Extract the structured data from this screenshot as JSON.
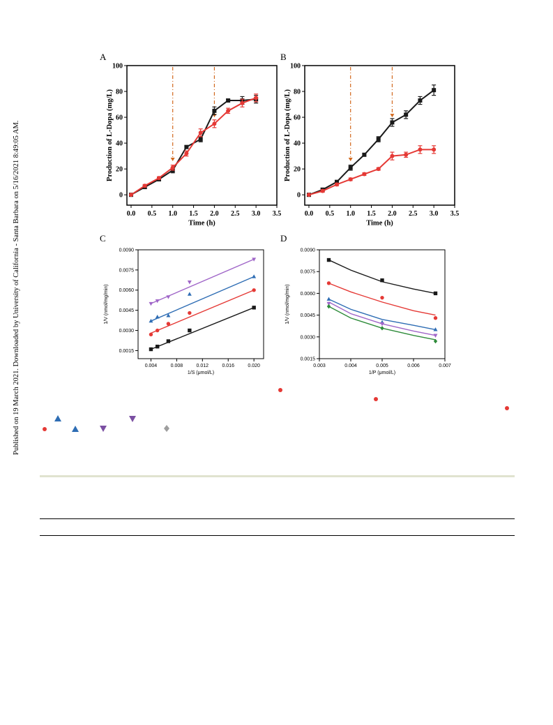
{
  "sidebar_text": "Published on 19 March 2021. Downloaded by University of California - Santa Barbara on 5/16/2021 8:49:05 AM.",
  "colors": {
    "black_series": "#1a1a1a",
    "red_series": "#e53935",
    "blue_series": "#2e6db4",
    "purple_series": "#a066c8",
    "green_series": "#2e8b3a",
    "annotation": "#d2691e"
  },
  "chart_data": [
    {
      "panel": "A",
      "type": "line",
      "xlabel": "Time (h)",
      "ylabel": "Production of L-Dopa (mg/L)",
      "xlim": [
        -0.1,
        3.5
      ],
      "ylim": [
        -8,
        100
      ],
      "xticks": [
        "0.0",
        "0.5",
        "1.0",
        "1.5",
        "2.0",
        "2.5",
        "3.0",
        "3.5"
      ],
      "yticks": [
        "0",
        "20",
        "40",
        "60",
        "80",
        "100"
      ],
      "annotation_lines_x": [
        1.0,
        2.0
      ],
      "series": [
        {
          "color": "black",
          "marker": "square",
          "x": [
            0,
            0.33,
            0.67,
            1.0,
            1.33,
            1.67,
            2.0,
            2.33,
            2.67,
            3.0
          ],
          "y": [
            0,
            6,
            12,
            19,
            37,
            43,
            65,
            73,
            73,
            74
          ],
          "err": [
            0,
            1,
            1,
            2,
            1,
            2,
            3,
            1,
            3,
            3
          ]
        },
        {
          "color": "red",
          "marker": "circle",
          "x": [
            0,
            0.33,
            0.67,
            1.0,
            1.33,
            1.67,
            2.0,
            2.33,
            2.67,
            3.0
          ],
          "y": [
            0,
            7,
            13,
            21,
            32,
            48,
            55,
            65,
            71,
            75
          ],
          "err": [
            0,
            1,
            1,
            2,
            2,
            3,
            3,
            2,
            3,
            3
          ]
        }
      ]
    },
    {
      "panel": "B",
      "type": "line",
      "xlabel": "Time (h)",
      "ylabel": "Production of L-Dopa (mg/L)",
      "xlim": [
        -0.1,
        3.5
      ],
      "ylim": [
        -8,
        100
      ],
      "xticks": [
        "0.0",
        "0.5",
        "1.0",
        "1.5",
        "2.0",
        "2.5",
        "3.0",
        "3.5"
      ],
      "yticks": [
        "0",
        "20",
        "40",
        "60",
        "80",
        "100"
      ],
      "annotation_lines_x": [
        1.0,
        2.0
      ],
      "series": [
        {
          "color": "black",
          "marker": "square",
          "x": [
            0,
            0.33,
            0.67,
            1.0,
            1.33,
            1.67,
            2.0,
            2.33,
            2.67,
            3.0
          ],
          "y": [
            0,
            4,
            10,
            21,
            31,
            43,
            56,
            62,
            73,
            81
          ],
          "err": [
            0,
            1,
            1,
            2,
            1,
            2,
            3,
            3,
            3,
            4
          ]
        },
        {
          "color": "red",
          "marker": "circle",
          "x": [
            0,
            0.33,
            0.67,
            1.0,
            1.33,
            1.67,
            2.0,
            2.33,
            2.67,
            3.0
          ],
          "y": [
            0,
            3,
            8,
            12,
            16,
            20,
            30,
            31,
            35,
            35
          ],
          "err": [
            0,
            1,
            1,
            1,
            1,
            1,
            3,
            2,
            3,
            3
          ]
        }
      ]
    },
    {
      "panel": "C",
      "type": "scatter",
      "xlabel": "1/S (μmol/L)",
      "ylabel": "1/V (nmol/mg/min)",
      "xlim": [
        0.002,
        0.0215
      ],
      "ylim": [
        0.0009,
        0.009
      ],
      "xticks": [
        "0.004",
        "0.008",
        "0.012",
        "0.016",
        "0.020"
      ],
      "yticks": [
        "0.0015",
        "0.0030",
        "0.0045",
        "0.0060",
        "0.0075",
        "0.0090"
      ],
      "series": [
        {
          "color": "black",
          "marker": "square",
          "x": [
            0.004,
            0.005,
            0.0067,
            0.01,
            0.02
          ],
          "y": [
            0.0016,
            0.0018,
            0.0022,
            0.003,
            0.0047
          ],
          "fit": [
            [
              0.004,
              0.0016
            ],
            [
              0.02,
              0.0047
            ]
          ]
        },
        {
          "color": "red",
          "marker": "circle",
          "x": [
            0.004,
            0.005,
            0.0067,
            0.01,
            0.02
          ],
          "y": [
            0.0027,
            0.003,
            0.0035,
            0.0043,
            0.006
          ],
          "fit": [
            [
              0.004,
              0.0028
            ],
            [
              0.02,
              0.006
            ]
          ]
        },
        {
          "color": "blue",
          "marker": "triangle-up",
          "x": [
            0.004,
            0.005,
            0.0067,
            0.01,
            0.02
          ],
          "y": [
            0.0037,
            0.004,
            0.0041,
            0.0057,
            0.007
          ],
          "fit": [
            [
              0.004,
              0.0037
            ],
            [
              0.02,
              0.007
            ]
          ]
        },
        {
          "color": "purple",
          "marker": "triangle-down",
          "x": [
            0.004,
            0.005,
            0.0067,
            0.01,
            0.02
          ],
          "y": [
            0.005,
            0.0052,
            0.0055,
            0.0066,
            0.0083
          ],
          "fit": [
            [
              0.004,
              0.005
            ],
            [
              0.02,
              0.0083
            ]
          ]
        }
      ]
    },
    {
      "panel": "D",
      "type": "scatter",
      "xlabel": "1/P (μmol/L)",
      "ylabel": "1/V (nmol/mg/min)",
      "xlim": [
        0.003,
        0.007
      ],
      "ylim": [
        0.0015,
        0.009
      ],
      "xticks": [
        "0.003",
        "0.004",
        "0.005",
        "0.006",
        "0.007"
      ],
      "yticks": [
        "0.0015",
        "0.0030",
        "0.0045",
        "0.0060",
        "0.0075",
        "0.0090"
      ],
      "series": [
        {
          "color": "black",
          "marker": "square",
          "x": [
            0.0033,
            0.005,
            0.0067
          ],
          "y": [
            0.0083,
            0.0069,
            0.006
          ],
          "fit": [
            [
              0.0033,
              0.0083
            ],
            [
              0.004,
              0.0076
            ],
            [
              0.005,
              0.0068
            ],
            [
              0.006,
              0.0063
            ],
            [
              0.0067,
              0.006
            ]
          ]
        },
        {
          "color": "red",
          "marker": "circle",
          "x": [
            0.0033,
            0.005,
            0.0067
          ],
          "y": [
            0.0067,
            0.0057,
            0.0043
          ],
          "fit": [
            [
              0.0033,
              0.0067
            ],
            [
              0.004,
              0.0061
            ],
            [
              0.005,
              0.0054
            ],
            [
              0.006,
              0.0048
            ],
            [
              0.0067,
              0.0045
            ]
          ]
        },
        {
          "color": "blue",
          "marker": "triangle-up",
          "x": [
            0.0033,
            0.005,
            0.0067
          ],
          "y": [
            0.0056,
            0.004,
            0.0035
          ],
          "fit": [
            [
              0.0033,
              0.0056
            ],
            [
              0.004,
              0.0049
            ],
            [
              0.005,
              0.0042
            ],
            [
              0.006,
              0.0038
            ],
            [
              0.0067,
              0.0035
            ]
          ]
        },
        {
          "color": "purple",
          "marker": "triangle-down",
          "x": [
            0.0033,
            0.005,
            0.0067
          ],
          "y": [
            0.0053,
            0.0039,
            0.0031
          ],
          "fit": [
            [
              0.0033,
              0.0054
            ],
            [
              0.004,
              0.0046
            ],
            [
              0.005,
              0.0039
            ],
            [
              0.006,
              0.0034
            ],
            [
              0.0067,
              0.0031
            ]
          ]
        },
        {
          "color": "green",
          "marker": "diamond",
          "x": [
            0.0033,
            0.005,
            0.0067
          ],
          "y": [
            0.0051,
            0.0036,
            0.0027
          ],
          "fit": [
            [
              0.0033,
              0.0051
            ],
            [
              0.004,
              0.0043
            ],
            [
              0.005,
              0.0036
            ],
            [
              0.006,
              0.0031
            ],
            [
              0.0067,
              0.0028
            ]
          ]
        }
      ]
    }
  ],
  "caption_symbols": [
    {
      "shape": "circle",
      "color": "red"
    },
    {
      "shape": "circle",
      "color": "red"
    },
    {
      "shape": "circle",
      "color": "red"
    },
    {
      "shape": "triangle-up",
      "color": "blue"
    },
    {
      "shape": "triangle-down",
      "color": "purple"
    },
    {
      "shape": "circle",
      "color": "red"
    },
    {
      "shape": "triangle-up",
      "color": "blue"
    },
    {
      "shape": "triangle-down",
      "color": "purple"
    },
    {
      "shape": "diamond",
      "color": "gray"
    }
  ]
}
